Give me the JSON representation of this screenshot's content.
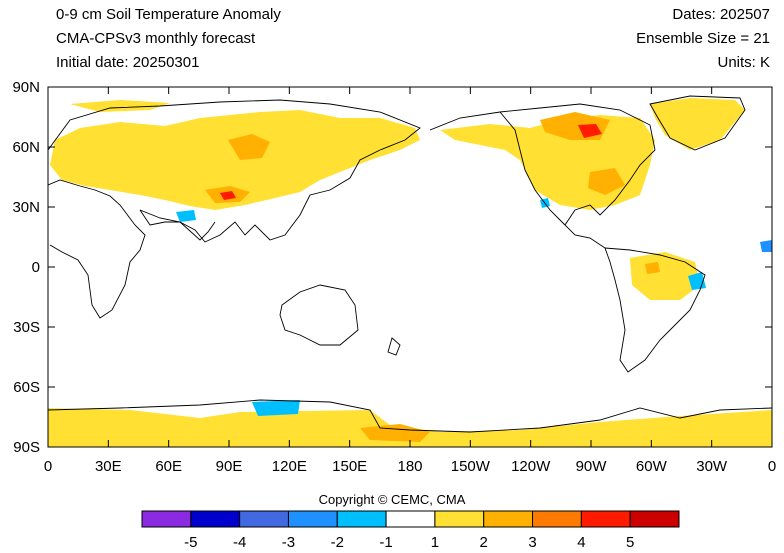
{
  "header": {
    "title": "0-9 cm Soil Temperature Anomaly",
    "subtitle": "CMA-CPSv3 monthly forecast",
    "initial_date": "Initial date: 20250301",
    "dates": "Dates: 202507",
    "ensemble": "Ensemble Size = 21",
    "units": "Units: K"
  },
  "map": {
    "projection": "cylindrical equidistant",
    "lon_range": [
      0,
      360
    ],
    "lat_range": [
      -90,
      90
    ],
    "lat_labels": [
      "90N",
      "60N",
      "30N",
      "0",
      "30S",
      "60S",
      "90S"
    ],
    "lon_labels": [
      "0",
      "30E",
      "60E",
      "90E",
      "120E",
      "150E",
      "180",
      "150W",
      "120W",
      "90W",
      "60W",
      "30W",
      "0"
    ],
    "anomaly_regions_note": ""
  },
  "copyright": "Copyright © CEMC, CMA",
  "colorbar": {
    "colors": [
      "#8a2be2",
      "#0000cd",
      "#4169e1",
      "#1e90ff",
      "#00bfff",
      "#ffffff",
      "#ffe033",
      "#ffb000",
      "#ff7a00",
      "#ff1a00",
      "#cc0000"
    ],
    "labels": [
      "-5",
      "-4",
      "-3",
      "-2",
      "-1",
      "1",
      "2",
      "3",
      "4",
      "5"
    ]
  }
}
